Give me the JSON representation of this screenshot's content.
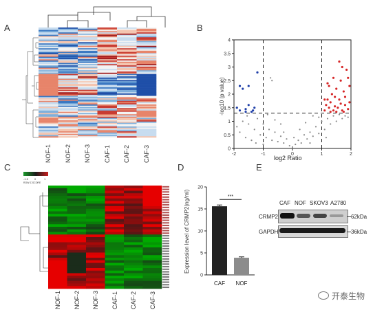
{
  "panels": {
    "A": {
      "label": "A",
      "columns": [
        "NOF-1",
        "NOF-2",
        "NOF-3",
        "CAF-1",
        "CAF-2",
        "CAF-3"
      ]
    },
    "B": {
      "label": "B",
      "xlabel": "log2 Ratio",
      "ylabel": "-log10 (p value)",
      "xticks": [
        "-2",
        "-1",
        "0",
        "1",
        "2"
      ],
      "yticks": [
        "0",
        "0.5",
        "1",
        "1.5",
        "2",
        "2.5",
        "3",
        "3.5",
        "4"
      ]
    },
    "C": {
      "label": "C",
      "legend_ticks": [
        "-1.5",
        "0",
        "1"
      ],
      "legend_caption": "ROW Z-SCORE",
      "columns": [
        "NOF-1",
        "NOF-2",
        "NOF-3",
        "CAF-1",
        "CAF-2",
        "CAF-3"
      ]
    },
    "D": {
      "label": "D",
      "ylabel": "Expression level of CRMP2(ng/ml)",
      "significance": "***",
      "yticks": [
        "0",
        "5",
        "10",
        "15",
        "20"
      ]
    },
    "E": {
      "label": "E",
      "lanes": [
        "CAF",
        "NOF",
        "SKOV3",
        "A2780"
      ],
      "rows": [
        {
          "name": "CRMP2",
          "size": "62kDa"
        },
        {
          "name": "GAPDH",
          "size": "36kDa"
        }
      ]
    }
  },
  "watermark": "开泰生物",
  "chart_data": [
    {
      "type": "scatter",
      "panel": "B",
      "xlabel": "log2 Ratio",
      "ylabel": "-log10 (p value)",
      "xlim": [
        -2,
        2
      ],
      "ylim": [
        0,
        4
      ],
      "thresholds": {
        "x": [
          -1,
          1
        ],
        "y": 1.3
      },
      "series": [
        {
          "group": "down",
          "color": "#1f3fa8",
          "points": [
            [
              -1.9,
              1.5
            ],
            [
              -1.8,
              1.4
            ],
            [
              -1.6,
              1.45
            ],
            [
              -1.5,
              1.6
            ],
            [
              -1.4,
              1.35
            ],
            [
              -1.3,
              1.5
            ],
            [
              -1.7,
              2.2
            ],
            [
              -1.5,
              2.3
            ],
            [
              -1.2,
              2.8
            ],
            [
              -1.8,
              2.3
            ],
            [
              -1.6,
              1.35
            ],
            [
              -1.35,
              1.4
            ]
          ]
        },
        {
          "group": "up",
          "color": "#d62728",
          "points": [
            [
              1.1,
              1.4
            ],
            [
              1.15,
              1.6
            ],
            [
              1.2,
              1.8
            ],
            [
              1.25,
              1.5
            ],
            [
              1.3,
              1.7
            ],
            [
              1.35,
              2.0
            ],
            [
              1.4,
              1.4
            ],
            [
              1.45,
              1.9
            ],
            [
              1.5,
              2.2
            ],
            [
              1.55,
              1.5
            ],
            [
              1.6,
              1.8
            ],
            [
              1.65,
              2.5
            ],
            [
              1.7,
              1.4
            ],
            [
              1.75,
              2.1
            ],
            [
              1.8,
              1.6
            ],
            [
              1.85,
              2.9
            ],
            [
              1.9,
              1.45
            ],
            [
              1.95,
              2.3
            ],
            [
              1.6,
              3.2
            ],
            [
              1.4,
              2.6
            ],
            [
              1.7,
              3.0
            ],
            [
              1.25,
              2.3
            ],
            [
              1.5,
              1.35
            ],
            [
              1.8,
              1.9
            ],
            [
              1.9,
              2.6
            ],
            [
              1.3,
              1.35
            ],
            [
              1.45,
              1.55
            ],
            [
              1.65,
              1.65
            ],
            [
              1.75,
              1.35
            ],
            [
              1.95,
              1.7
            ],
            [
              1.1,
              1.8
            ],
            [
              1.2,
              2.4
            ]
          ]
        },
        {
          "group": "ns",
          "color": "#8a8a8a",
          "points": [
            [
              -1.9,
              0.8
            ],
            [
              -1.8,
              0.6
            ],
            [
              -1.7,
              1.0
            ],
            [
              -1.6,
              0.4
            ],
            [
              -1.5,
              0.9
            ],
            [
              -1.4,
              0.3
            ],
            [
              -1.3,
              0.7
            ],
            [
              -1.2,
              1.1
            ],
            [
              -1.1,
              0.5
            ],
            [
              -1.0,
              0.9
            ],
            [
              -0.9,
              0.4
            ],
            [
              -0.8,
              0.7
            ],
            [
              -0.7,
              0.3
            ],
            [
              -0.6,
              0.6
            ],
            [
              -0.5,
              0.25
            ],
            [
              -0.4,
              0.45
            ],
            [
              -0.3,
              0.2
            ],
            [
              -0.2,
              0.35
            ],
            [
              -0.1,
              0.1
            ],
            [
              0.0,
              0.05
            ],
            [
              0.1,
              0.15
            ],
            [
              0.2,
              0.3
            ],
            [
              0.3,
              0.2
            ],
            [
              0.4,
              0.5
            ],
            [
              0.5,
              0.35
            ],
            [
              0.6,
              0.6
            ],
            [
              0.7,
              0.45
            ],
            [
              0.8,
              0.8
            ],
            [
              0.9,
              0.55
            ],
            [
              1.0,
              1.0
            ],
            [
              1.1,
              0.7
            ],
            [
              1.2,
              1.1
            ],
            [
              1.3,
              0.9
            ],
            [
              1.4,
              1.2
            ],
            [
              1.5,
              1.0
            ],
            [
              1.6,
              1.25
            ],
            [
              1.7,
              1.1
            ],
            [
              1.8,
              1.2
            ],
            [
              1.9,
              1.15
            ],
            [
              -0.85,
              1.25
            ],
            [
              -0.6,
              1.05
            ],
            [
              -0.4,
              0.9
            ],
            [
              0.45,
              0.95
            ],
            [
              0.7,
              1.2
            ],
            [
              -1.25,
              0.2
            ],
            [
              -0.3,
              0.6
            ],
            [
              0.25,
              0.7
            ],
            [
              0.9,
              1.15
            ],
            [
              -1.55,
              1.2
            ],
            [
              1.15,
              0.4
            ],
            [
              -0.75,
              2.6
            ],
            [
              -0.7,
              2.5
            ],
            [
              -1.0,
              0.15
            ],
            [
              0.05,
              0.4
            ],
            [
              0.6,
              0.2
            ]
          ]
        }
      ]
    },
    {
      "type": "bar",
      "panel": "D",
      "categories": [
        "CAF",
        "NOF"
      ],
      "values": [
        15.6,
        3.9
      ],
      "errors": [
        0.3,
        0.2
      ],
      "colors": [
        "#222222",
        "#8c8c8c"
      ],
      "ylabel": "Expression level of CRMP2(ng/ml)",
      "ylim": [
        0,
        20
      ]
    }
  ]
}
